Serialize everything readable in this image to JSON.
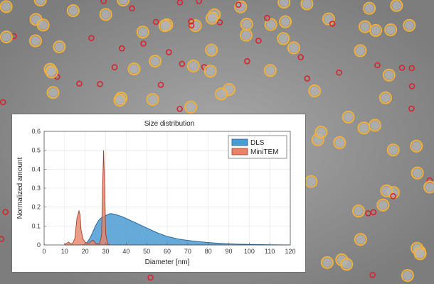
{
  "image": {
    "background_color": "#8e8e8e",
    "particle_ring_colors": {
      "large": "#f0b23c",
      "small": "#d8232f"
    }
  },
  "chart_data": {
    "type": "area",
    "title": "Size distribution",
    "xlabel": "Diameter [nm]",
    "ylabel": "Normalized amount",
    "xlim": [
      0,
      120
    ],
    "ylim": [
      0,
      0.6
    ],
    "xticks": [
      "0",
      "10",
      "20",
      "30",
      "40",
      "50",
      "60",
      "70",
      "80",
      "90",
      "100",
      "110",
      "120"
    ],
    "yticks": [
      "0",
      "0.1",
      "0.2",
      "0.3",
      "0.4",
      "0.5",
      "0.6"
    ],
    "grid": true,
    "legend": {
      "position": "top-right",
      "entries": [
        "DLS",
        "MiniTEM"
      ]
    },
    "series": [
      {
        "name": "DLS",
        "color": "#4a9bd2",
        "edge_color": "#1f5f94",
        "x": [
          18,
          20,
          21,
          22,
          23,
          24,
          25,
          26,
          27,
          28,
          29,
          30,
          31,
          32,
          33,
          35,
          38,
          40,
          45,
          50,
          55,
          60,
          65,
          70,
          75,
          80,
          85,
          90,
          95,
          100,
          105,
          110,
          115,
          120
        ],
        "y": [
          0,
          0.005,
          0.015,
          0.03,
          0.05,
          0.075,
          0.1,
          0.12,
          0.135,
          0.145,
          0.15,
          0.155,
          0.16,
          0.165,
          0.165,
          0.16,
          0.15,
          0.14,
          0.115,
          0.09,
          0.065,
          0.045,
          0.032,
          0.024,
          0.018,
          0.013,
          0.009,
          0.006,
          0.004,
          0.003,
          0.002,
          0.001,
          0.0005,
          0
        ]
      },
      {
        "name": "MiniTEM",
        "color": "#e8836a",
        "edge_color": "#a33d24",
        "x": [
          10,
          11,
          12,
          13,
          14,
          15,
          16,
          17,
          17.5,
          18,
          19,
          20,
          21,
          22,
          23,
          24,
          25,
          26,
          27,
          28,
          28.5,
          29,
          29.5,
          30,
          31,
          32,
          33
        ],
        "y": [
          0,
          0.01,
          0.015,
          0.005,
          0.01,
          0.035,
          0.14,
          0.18,
          0.16,
          0.08,
          0.03,
          0.015,
          0.01,
          0.01,
          0.02,
          0.025,
          0.01,
          0.005,
          0.005,
          0.05,
          0.3,
          0.5,
          0.3,
          0.06,
          0.005,
          0,
          0
        ]
      }
    ]
  }
}
